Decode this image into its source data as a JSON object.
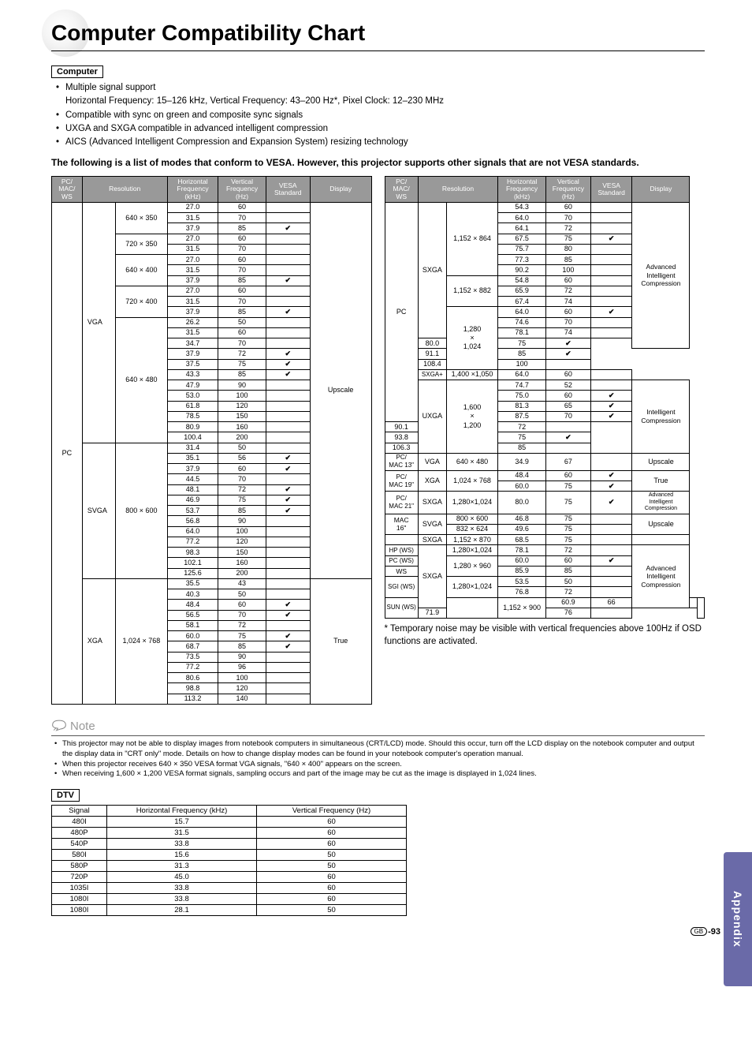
{
  "title": "Computer Compatibility Chart",
  "sec_computer": "Computer",
  "bullets": [
    "Multiple signal support",
    "Compatible with sync on green and composite sync signals",
    "UXGA and SXGA compatible in advanced intelligent compression",
    "AICS (Advanced Intelligent Compression and Expansion System) resizing technology"
  ],
  "bullet_sub": "Horizontal Frequency: 15–126 kHz, Vertical Frequency: 43–200 Hz*, Pixel Clock: 12–230 MHz",
  "intro": "The following is a list of modes that conform to VESA.  However, this projector supports other signals that are not VESA standards.",
  "headers": {
    "pcmac": "PC/\nMAC/\nWS",
    "res": "Resolution",
    "hf": "Horizontal\nFrequency\n(kHz)",
    "vf": "Vertical\nFrequency\n(Hz)",
    "vesa": "VESA\nStandard",
    "disp": "Display"
  },
  "left": {
    "pcmac": "PC",
    "groups": [
      {
        "mode": "VGA",
        "disp": "Upscale",
        "blocks": [
          {
            "res": "640 × 350",
            "rows": [
              [
                "27.0",
                "60",
                ""
              ],
              [
                "31.5",
                "70",
                ""
              ],
              [
                "37.9",
                "85",
                "1"
              ]
            ]
          },
          {
            "res": "720 × 350",
            "rows": [
              [
                "27.0",
                "60",
                ""
              ],
              [
                "31.5",
                "70",
                ""
              ]
            ]
          },
          {
            "res": "640 × 400",
            "rows": [
              [
                "27.0",
                "60",
                ""
              ],
              [
                "31.5",
                "70",
                ""
              ],
              [
                "37.9",
                "85",
                "1"
              ]
            ]
          },
          {
            "res": "720 × 400",
            "rows": [
              [
                "27.0",
                "60",
                ""
              ],
              [
                "31.5",
                "70",
                ""
              ],
              [
                "37.9",
                "85",
                "1"
              ]
            ]
          },
          {
            "res": "640 × 480",
            "rows": [
              [
                "26.2",
                "50",
                ""
              ],
              [
                "31.5",
                "60",
                ""
              ],
              [
                "34.7",
                "70",
                ""
              ],
              [
                "37.9",
                "72",
                "1"
              ],
              [
                "37.5",
                "75",
                "1"
              ],
              [
                "43.3",
                "85",
                "1"
              ],
              [
                "47.9",
                "90",
                ""
              ],
              [
                "53.0",
                "100",
                ""
              ],
              [
                "61.8",
                "120",
                ""
              ],
              [
                "78.5",
                "150",
                ""
              ],
              [
                "80.9",
                "160",
                ""
              ],
              [
                "100.4",
                "200",
                ""
              ]
            ]
          }
        ]
      },
      {
        "mode": "SVGA",
        "disp": "",
        "blocks": [
          {
            "res": "800 × 600",
            "rows": [
              [
                "31.4",
                "50",
                ""
              ],
              [
                "35.1",
                "56",
                "1"
              ],
              [
                "37.9",
                "60",
                "1"
              ],
              [
                "44.5",
                "70",
                ""
              ],
              [
                "48.1",
                "72",
                "1"
              ],
              [
                "46.9",
                "75",
                "1"
              ],
              [
                "53.7",
                "85",
                "1"
              ],
              [
                "56.8",
                "90",
                ""
              ],
              [
                "64.0",
                "100",
                ""
              ],
              [
                "77.2",
                "120",
                ""
              ],
              [
                "98.3",
                "150",
                ""
              ],
              [
                "102.1",
                "160",
                ""
              ],
              [
                "125.6",
                "200",
                ""
              ]
            ]
          }
        ]
      },
      {
        "mode": "XGA",
        "disp": "True",
        "blocks": [
          {
            "res": "1,024 × 768",
            "rows": [
              [
                "35.5",
                "43",
                ""
              ],
              [
                "40.3",
                "50",
                ""
              ],
              [
                "48.4",
                "60",
                "1"
              ],
              [
                "56.5",
                "70",
                "1"
              ],
              [
                "58.1",
                "72",
                ""
              ],
              [
                "60.0",
                "75",
                "1"
              ],
              [
                "68.7",
                "85",
                "1"
              ],
              [
                "73.5",
                "90",
                ""
              ],
              [
                "77.2",
                "96",
                ""
              ],
              [
                "80.6",
                "100",
                ""
              ],
              [
                "98.8",
                "120",
                ""
              ],
              [
                "113.2",
                "140",
                ""
              ]
            ]
          }
        ]
      }
    ]
  },
  "right": {
    "groups": [
      {
        "pcmac": "PC",
        "subs": [
          {
            "mode": "SXGA",
            "disp": "Advanced Intelligent Compression",
            "blocks": [
              {
                "res": "1,152 × 864",
                "rows": [
                  [
                    "54.3",
                    "60",
                    ""
                  ],
                  [
                    "64.0",
                    "70",
                    ""
                  ],
                  [
                    "64.1",
                    "72",
                    ""
                  ],
                  [
                    "67.5",
                    "75",
                    "1"
                  ],
                  [
                    "75.7",
                    "80",
                    ""
                  ],
                  [
                    "77.3",
                    "85",
                    ""
                  ],
                  [
                    "90.2",
                    "100",
                    ""
                  ]
                ]
              },
              {
                "res": "1,152 × 882",
                "rows": [
                  [
                    "54.8",
                    "60",
                    ""
                  ],
                  [
                    "65.9",
                    "72",
                    ""
                  ],
                  [
                    "67.4",
                    "74",
                    ""
                  ]
                ]
              },
              {
                "res": "1,280\n×\n1,024",
                "rows": [
                  [
                    "64.0",
                    "60",
                    "1"
                  ],
                  [
                    "74.6",
                    "70",
                    ""
                  ],
                  [
                    "78.1",
                    "74",
                    ""
                  ],
                  [
                    "80.0",
                    "75",
                    "1"
                  ],
                  [
                    "91.1",
                    "85",
                    "1"
                  ],
                  [
                    "108.4",
                    "100",
                    ""
                  ]
                ]
              }
            ]
          },
          {
            "mode": "SXGA+",
            "disp": "",
            "blocks": [
              {
                "res": "1,400 ×1,050",
                "rows": [
                  [
                    "64.0",
                    "60",
                    ""
                  ]
                ]
              }
            ]
          },
          {
            "mode": "UXGA",
            "disp": "Intelligent Compression",
            "blocks": [
              {
                "res": "1,600\n×\n1,200",
                "rows": [
                  [
                    "74.7",
                    "52",
                    ""
                  ],
                  [
                    "75.0",
                    "60",
                    "1"
                  ],
                  [
                    "81.3",
                    "65",
                    "1"
                  ],
                  [
                    "87.5",
                    "70",
                    "1"
                  ],
                  [
                    "90.1",
                    "72",
                    ""
                  ],
                  [
                    "93.8",
                    "75",
                    "1"
                  ],
                  [
                    "106.3",
                    "85",
                    ""
                  ]
                ]
              }
            ]
          }
        ]
      },
      {
        "pcmac": "PC/\nMAC 13\"",
        "subs": [
          {
            "mode": "VGA",
            "disp": "Upscale",
            "blocks": [
              {
                "res": "640 × 480",
                "rows": [
                  [
                    "34.9",
                    "67",
                    ""
                  ]
                ]
              }
            ]
          }
        ]
      },
      {
        "pcmac": "PC/\nMAC 19\"",
        "subs": [
          {
            "mode": "XGA",
            "disp": "True",
            "blocks": [
              {
                "res": "1,024 × 768",
                "rows": [
                  [
                    "48.4",
                    "60",
                    "1"
                  ],
                  [
                    "60.0",
                    "75",
                    "1"
                  ]
                ]
              }
            ]
          }
        ]
      },
      {
        "pcmac": "PC/\nMAC 21\"",
        "subs": [
          {
            "mode": "SXGA",
            "disp": "Advanced Intelligent Compression",
            "blocks": [
              {
                "res": "1,280×1,024",
                "rows": [
                  [
                    "80.0",
                    "75",
                    "1"
                  ]
                ]
              }
            ]
          }
        ]
      },
      {
        "pcmac": "MAC\n16\"",
        "subs": [
          {
            "mode": "SVGA",
            "disp": "Upscale",
            "blocks": [
              {
                "res": "800 × 600",
                "rows": [
                  [
                    "46.8",
                    "75",
                    ""
                  ]
                ]
              },
              {
                "res": "832 × 624",
                "rows": [
                  [
                    "49.6",
                    "75",
                    ""
                  ]
                ]
              }
            ]
          }
        ]
      },
      {
        "pcmac": "",
        "subs": [
          {
            "mode": "SXGA",
            "disp": "",
            "blocks": [
              {
                "res": "1,152 × 870",
                "rows": [
                  [
                    "68.5",
                    "75",
                    ""
                  ]
                ]
              }
            ]
          }
        ]
      },
      {
        "pcmac": "HP (WS)",
        "subs": [
          {
            "mode": "",
            "disp": "",
            "blocks": [
              {
                "res": "1,280×1,024",
                "rows": [
                  [
                    "78.1",
                    "72",
                    ""
                  ]
                ]
              }
            ]
          }
        ]
      },
      {
        "pcmac": "PC (WS)",
        "subs": [
          {
            "mode": "",
            "disp": "Advanced Intelligent Compression",
            "blocks": [
              {
                "res": "1,280 × 960",
                "rows": [
                  [
                    "60.0",
                    "60",
                    "1"
                  ]
                ]
              }
            ]
          }
        ]
      },
      {
        "pcmac": "WS",
        "subs": [
          {
            "mode": "SXGA",
            "disp": "",
            "blocks": [
              {
                "res": "",
                "rows": [
                  [
                    "85.9",
                    "85",
                    ""
                  ]
                ]
              }
            ]
          }
        ]
      },
      {
        "pcmac": "SGI (WS)",
        "subs": [
          {
            "mode": "",
            "disp": "",
            "blocks": [
              {
                "res": "1,280×1,024",
                "rows": [
                  [
                    "53.5",
                    "50",
                    ""
                  ],
                  [
                    "76.8",
                    "72",
                    ""
                  ]
                ]
              }
            ]
          }
        ]
      },
      {
        "pcmac": "SUN (WS)",
        "subs": [
          {
            "mode": "",
            "disp": "",
            "blocks": [
              {
                "res": "1,152 × 900",
                "rows": [
                  [
                    "60.9",
                    "66",
                    ""
                  ],
                  [
                    "71.9",
                    "76",
                    ""
                  ]
                ]
              }
            ]
          }
        ]
      }
    ]
  },
  "temp_note": "* Temporary noise  may be visible with vertical frequencies above 100Hz if OSD functions  are activated.",
  "note_word": "Note",
  "notes": [
    "This projector may not be able to display images from notebook computers in simultaneous (CRT/LCD) mode. Should this occur, turn off the LCD display on the notebook computer and output the display data in \"CRT only\" mode. Details on how to change display modes can be found in your notebook computer's operation manual.",
    "When this projector receives 640 × 350 VESA format VGA signals, \"640 × 400\" appears on the screen.",
    "When receiving 1,600 × 1,200 VESA format signals, sampling occurs and part of the image may be cut as the image is displayed in 1,024 lines."
  ],
  "dtv_label": "DTV",
  "dtv": {
    "h": [
      "Signal",
      "Horizontal Frequency (kHz)",
      "Vertical Frequency (Hz)"
    ],
    "rows": [
      [
        "480I",
        "15.7",
        "60"
      ],
      [
        "480P",
        "31.5",
        "60"
      ],
      [
        "540P",
        "33.8",
        "60"
      ],
      [
        "580I",
        "15.6",
        "50"
      ],
      [
        "580P",
        "31.3",
        "50"
      ],
      [
        "720P",
        "45.0",
        "60"
      ],
      [
        "1035I",
        "33.8",
        "60"
      ],
      [
        "1080I",
        "33.8",
        "60"
      ],
      [
        "1080I",
        "28.1",
        "50"
      ]
    ]
  },
  "side": "Appendix",
  "gb": "GB",
  "pn": "-93"
}
